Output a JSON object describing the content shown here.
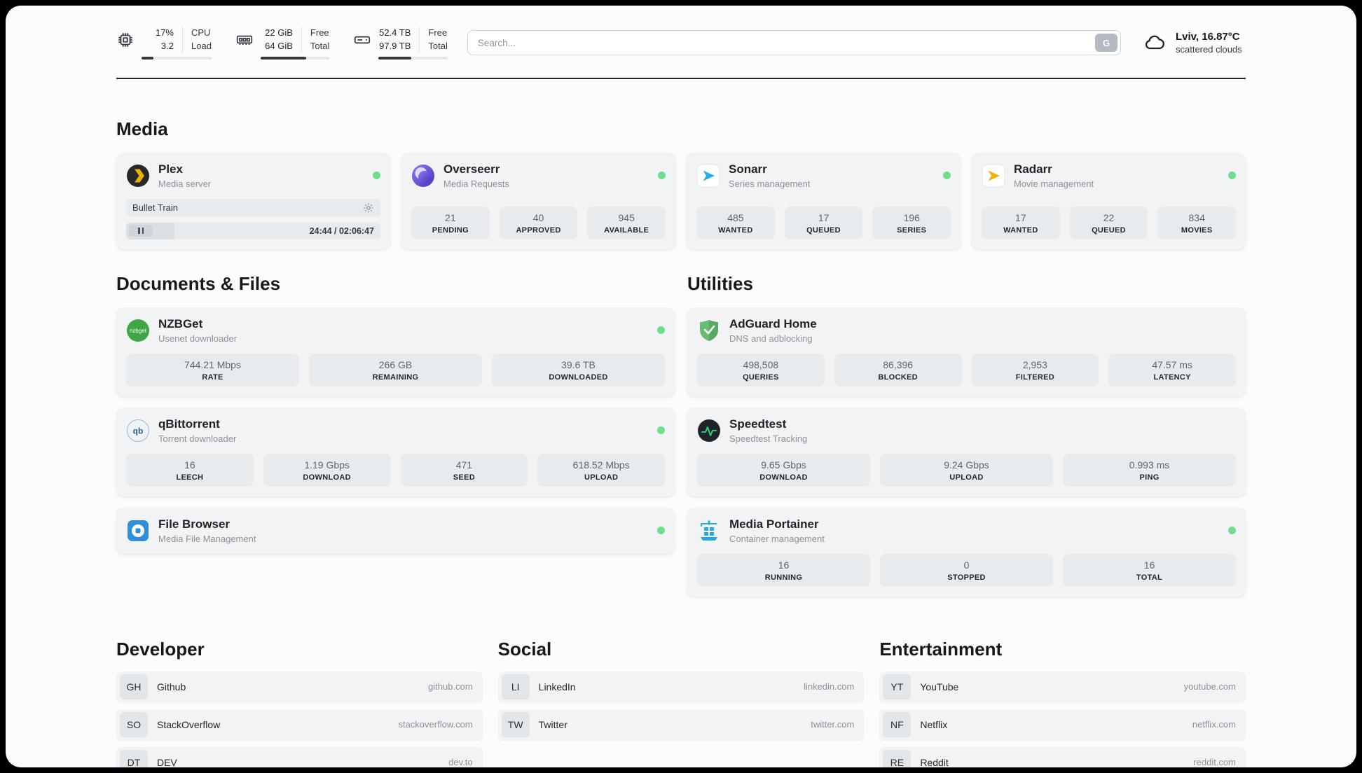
{
  "header": {
    "cpu": {
      "line1": "17%",
      "line2": "3.2",
      "label1": "CPU",
      "label2": "Load",
      "progress": 17
    },
    "memory": {
      "line1": "22 GiB",
      "line2": "64 GiB",
      "label1": "Free",
      "label2": "Total",
      "progress": 66
    },
    "storage": {
      "line1": "52.4 TB",
      "line2": "97.9 TB",
      "label1": "Free",
      "label2": "Total",
      "progress": 47
    },
    "search": {
      "placeholder": "Search...",
      "button_label": "G"
    },
    "weather": {
      "location": "Lviv, 16.87°C",
      "condition": "scattered clouds"
    }
  },
  "sections": {
    "media": {
      "title": "Media",
      "plex": {
        "name": "Plex",
        "subtitle": "Media server",
        "now_playing": "Bullet Train",
        "time": "24:44 / 02:06:47",
        "progress_percent": 19
      },
      "overseerr": {
        "name": "Overseerr",
        "subtitle": "Media Requests",
        "stats": [
          {
            "value": "21",
            "label": "PENDING"
          },
          {
            "value": "40",
            "label": "APPROVED"
          },
          {
            "value": "945",
            "label": "AVAILABLE"
          }
        ]
      },
      "sonarr": {
        "name": "Sonarr",
        "subtitle": "Series management",
        "stats": [
          {
            "value": "485",
            "label": "WANTED"
          },
          {
            "value": "17",
            "label": "QUEUED"
          },
          {
            "value": "196",
            "label": "SERIES"
          }
        ]
      },
      "radarr": {
        "name": "Radarr",
        "subtitle": "Movie management",
        "stats": [
          {
            "value": "17",
            "label": "WANTED"
          },
          {
            "value": "22",
            "label": "QUEUED"
          },
          {
            "value": "834",
            "label": "MOVIES"
          }
        ]
      }
    },
    "documents": {
      "title": "Documents & Files",
      "nzbget": {
        "name": "NZBGet",
        "subtitle": "Usenet downloader",
        "stats": [
          {
            "value": "744.21 Mbps",
            "label": "RATE"
          },
          {
            "value": "266 GB",
            "label": "REMAINING"
          },
          {
            "value": "39.6 TB",
            "label": "DOWNLOADED"
          }
        ]
      },
      "qbittorrent": {
        "name": "qBittorrent",
        "subtitle": "Torrent downloader",
        "stats": [
          {
            "value": "16",
            "label": "LEECH"
          },
          {
            "value": "1.19 Gbps",
            "label": "DOWNLOAD"
          },
          {
            "value": "471",
            "label": "SEED"
          },
          {
            "value": "618.52 Mbps",
            "label": "UPLOAD"
          }
        ]
      },
      "filebrowser": {
        "name": "File Browser",
        "subtitle": "Media File Management"
      }
    },
    "utilities": {
      "title": "Utilities",
      "adguard": {
        "name": "AdGuard Home",
        "subtitle": "DNS and adblocking",
        "stats": [
          {
            "value": "498,508",
            "label": "QUERIES"
          },
          {
            "value": "86,396",
            "label": "BLOCKED"
          },
          {
            "value": "2,953",
            "label": "FILTERED"
          },
          {
            "value": "47.57 ms",
            "label": "LATENCY"
          }
        ]
      },
      "speedtest": {
        "name": "Speedtest",
        "subtitle": "Speedtest Tracking",
        "stats": [
          {
            "value": "9.65 Gbps",
            "label": "DOWNLOAD"
          },
          {
            "value": "9.24 Gbps",
            "label": "UPLOAD"
          },
          {
            "value": "0.993 ms",
            "label": "PING"
          }
        ]
      },
      "portainer": {
        "name": "Media Portainer",
        "subtitle": "Container management",
        "stats": [
          {
            "value": "16",
            "label": "RUNNING"
          },
          {
            "value": "0",
            "label": "STOPPED"
          },
          {
            "value": "16",
            "label": "TOTAL"
          }
        ]
      }
    },
    "developer": {
      "title": "Developer",
      "links": [
        {
          "abbr": "GH",
          "name": "Github",
          "url": "github.com"
        },
        {
          "abbr": "SO",
          "name": "StackOverflow",
          "url": "stackoverflow.com"
        },
        {
          "abbr": "DT",
          "name": "DEV",
          "url": "dev.to"
        }
      ]
    },
    "social": {
      "title": "Social",
      "links": [
        {
          "abbr": "LI",
          "name": "LinkedIn",
          "url": "linkedin.com"
        },
        {
          "abbr": "TW",
          "name": "Twitter",
          "url": "twitter.com"
        }
      ]
    },
    "entertainment": {
      "title": "Entertainment",
      "links": [
        {
          "abbr": "YT",
          "name": "YouTube",
          "url": "youtube.com"
        },
        {
          "abbr": "NF",
          "name": "Netflix",
          "url": "netflix.com"
        },
        {
          "abbr": "RE",
          "name": "Reddit",
          "url": "reddit.com"
        }
      ]
    }
  }
}
